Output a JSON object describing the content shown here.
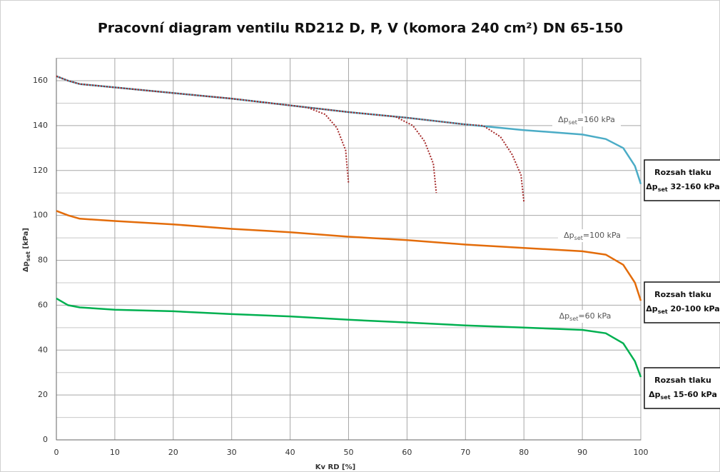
{
  "chart_data": {
    "type": "line",
    "title": "Pracovní diagram ventilu RD212 D, P, V (komora 240 cm²) DN 65-150",
    "x_label": "Kv RD [%]",
    "y_label": {
      "p": "Δp",
      "sub": "set",
      "rest": " [kPa]"
    },
    "xlim": [
      0,
      100
    ],
    "xticks": [
      0,
      10,
      20,
      30,
      40,
      50,
      60,
      70,
      80,
      90,
      100
    ],
    "ylim": [
      0,
      170
    ],
    "yticks": [
      0,
      20,
      40,
      60,
      80,
      100,
      120,
      140,
      160
    ],
    "y_minor_grid": [
      10,
      30,
      50,
      70,
      90,
      110,
      130,
      150,
      170
    ],
    "grid": true,
    "series": [
      {
        "color": "#4bacc6",
        "style": "solid",
        "x": [
          0,
          2,
          4,
          10,
          20,
          30,
          40,
          50,
          60,
          70,
          80,
          90,
          94,
          97,
          99,
          100
        ],
        "values": [
          162,
          160,
          158.5,
          157,
          154.5,
          152,
          149,
          146,
          143.5,
          140.5,
          138,
          136,
          134,
          130,
          122,
          114
        ]
      },
      {
        "color": "#e36c0a",
        "style": "solid",
        "x": [
          0,
          2,
          4,
          10,
          20,
          30,
          40,
          50,
          60,
          70,
          80,
          90,
          94,
          97,
          99,
          100
        ],
        "values": [
          102,
          100,
          98.5,
          97.5,
          96,
          94,
          92.5,
          90.5,
          89,
          87,
          85.5,
          84,
          82.5,
          78,
          70,
          62
        ]
      },
      {
        "color": "#00b050",
        "style": "solid",
        "x": [
          0,
          2,
          4,
          10,
          20,
          30,
          40,
          50,
          60,
          70,
          80,
          90,
          94,
          97,
          99,
          100
        ],
        "values": [
          63,
          60,
          59,
          58,
          57.3,
          56,
          55,
          53.5,
          52.3,
          51,
          50,
          49,
          47.5,
          43,
          35,
          28
        ]
      },
      {
        "color": "#a52a2a",
        "style": "dotted",
        "x": [
          0,
          2,
          4,
          10,
          20,
          30,
          40,
          43,
          46,
          48,
          49.5,
          50
        ],
        "values": [
          162,
          160,
          158.5,
          157,
          154.5,
          152,
          149,
          148,
          145,
          139,
          129,
          114
        ]
      },
      {
        "color": "#a52a2a",
        "style": "dotted",
        "x": [
          0,
          2,
          4,
          10,
          20,
          30,
          40,
          50,
          58,
          61,
          63,
          64.5,
          65
        ],
        "values": [
          162,
          160,
          158.5,
          157,
          154.5,
          152,
          149,
          146,
          144,
          140,
          133,
          123,
          110
        ]
      },
      {
        "color": "#a52a2a",
        "style": "dotted",
        "x": [
          0,
          2,
          4,
          10,
          20,
          30,
          40,
          50,
          60,
          70,
          73,
          76,
          78,
          79.5,
          80
        ],
        "values": [
          162,
          160,
          158.5,
          157,
          154.5,
          152,
          149,
          146,
          143.5,
          140.5,
          140,
          135,
          127,
          118,
          106
        ]
      }
    ],
    "curve_labels": [
      {
        "p": "Δp",
        "sub": "set",
        "rest": "=160 kPa"
      },
      {
        "p": "Δp",
        "sub": "set",
        "rest": "=100 kPa"
      },
      {
        "p": "Δp",
        "sub": "set",
        "rest": "=60 kPa"
      }
    ],
    "range_boxes": [
      {
        "line1": "Rozsah tlaku",
        "p": "Δp",
        "sub": "set",
        "rest": " 32-160 kPa"
      },
      {
        "line1": "Rozsah tlaku",
        "p": "Δp",
        "sub": "set",
        "rest": " 20-100 kPa"
      },
      {
        "line1": "Rozsah tlaku",
        "p": "Δp",
        "sub": "set",
        "rest": " 15-60 kPa"
      }
    ]
  }
}
